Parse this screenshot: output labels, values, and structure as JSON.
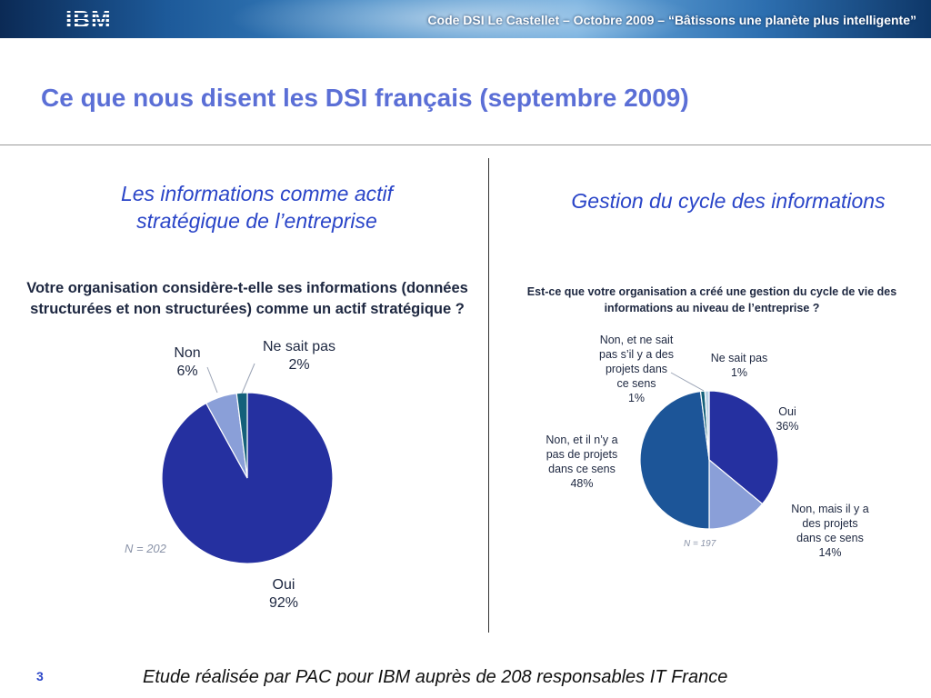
{
  "banner": {
    "logo": "IBM",
    "text": "Code DSI Le Castellet – Octobre 2009 – “Bâtissons une planète plus intelligente”"
  },
  "page": {
    "title": "Ce que nous disent les DSI français (septembre 2009)",
    "page_number": "3",
    "footer": "Etude réalisée par PAC pour IBM auprès de 208 responsables IT France"
  },
  "left": {
    "subhead_line1": "Les informations comme actif",
    "subhead_line2": "stratégique de l’entreprise",
    "question_line1": "Votre organisation considère-t-elle ses informations (données",
    "question_line2": "structurées et non structurées) comme un actif stratégique ?",
    "n_label": "N = 202"
  },
  "right": {
    "subhead": "Gestion du cycle des informations",
    "question_line1": "Est-ce que votre organisation a créé une gestion du cycle de vie des",
    "question_line2": "informations au niveau de l’entreprise ?",
    "n_label": "N = 197"
  },
  "colors": {
    "title": "#5b6fd6",
    "subhead": "#2a45c8",
    "pie_dark_blue": "#2530a0",
    "pie_light_blue": "#8a9fd8",
    "pie_teal": "#14607a",
    "pie_mid_blue": "#1c5598"
  },
  "chart_data": [
    {
      "type": "pie",
      "title": "Votre organisation considère-t-elle ses informations (données structurées et non structurées) comme un actif stratégique ?",
      "n": "N = 202",
      "slices": [
        {
          "lines": [
            "Oui",
            "92%"
          ],
          "value": 92,
          "color": "#2530a0"
        },
        {
          "lines": [
            "Non",
            "6%"
          ],
          "value": 6,
          "color": "#8a9fd8"
        },
        {
          "lines": [
            "Ne sait pas",
            "2%"
          ],
          "value": 2,
          "color": "#14607a"
        }
      ]
    },
    {
      "type": "pie",
      "title": "Est-ce que votre organisation a créé une gestion du cycle de vie des informations au niveau de l’entreprise ?",
      "n": "N = 197",
      "slices": [
        {
          "lines": [
            "Oui",
            "36%"
          ],
          "value": 36,
          "color": "#2530a0"
        },
        {
          "lines": [
            "Non, mais il y a",
            "des projets",
            "dans ce sens",
            "14%"
          ],
          "value": 14,
          "color": "#8a9fd8"
        },
        {
          "lines": [
            "Non, et il n’y a",
            "pas de projets",
            "dans ce sens",
            "48%"
          ],
          "value": 48,
          "color": "#1c5598"
        },
        {
          "lines": [
            "Non, et ne sait",
            "pas s’il y a des",
            "projets dans",
            "ce sens",
            "1%"
          ],
          "value": 1,
          "color": "#14607a"
        },
        {
          "lines": [
            "Ne sait pas",
            "1%"
          ],
          "value": 1,
          "color": "#b9d2e6"
        }
      ]
    }
  ]
}
